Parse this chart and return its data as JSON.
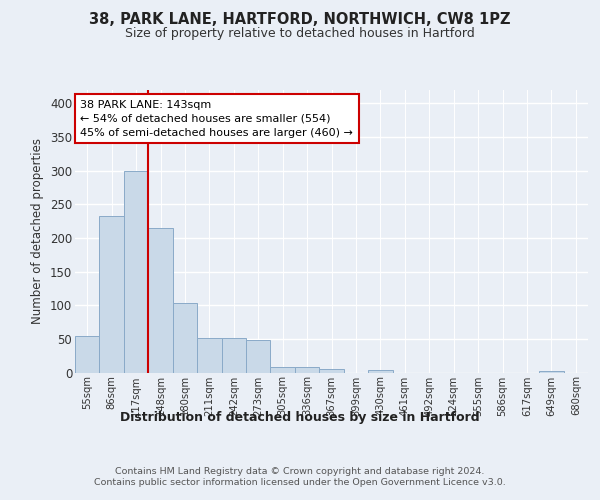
{
  "title1": "38, PARK LANE, HARTFORD, NORTHWICH, CW8 1PZ",
  "title2": "Size of property relative to detached houses in Hartford",
  "xlabel": "Distribution of detached houses by size in Hartford",
  "ylabel": "Number of detached properties",
  "footer": "Contains HM Land Registry data © Crown copyright and database right 2024.\nContains public sector information licensed under the Open Government Licence v3.0.",
  "bin_labels": [
    "55sqm",
    "86sqm",
    "117sqm",
    "148sqm",
    "180sqm",
    "211sqm",
    "242sqm",
    "273sqm",
    "305sqm",
    "336sqm",
    "367sqm",
    "399sqm",
    "430sqm",
    "461sqm",
    "492sqm",
    "524sqm",
    "555sqm",
    "586sqm",
    "617sqm",
    "649sqm",
    "680sqm"
  ],
  "bar_heights": [
    54,
    233,
    300,
    215,
    103,
    52,
    51,
    48,
    8,
    8,
    5,
    0,
    4,
    0,
    0,
    0,
    0,
    0,
    0,
    2,
    0
  ],
  "bar_color": "#c9d9e8",
  "bar_edge_color": "#8aaac8",
  "property_line_label": "38 PARK LANE: 143sqm",
  "annotation_line1": "← 54% of detached houses are smaller (554)",
  "annotation_line2": "45% of semi-detached houses are larger (460) →",
  "annotation_box_color": "#ffffff",
  "annotation_box_edge": "#cc0000",
  "vline_color": "#cc0000",
  "vline_x": 2.5,
  "ylim": [
    0,
    420
  ],
  "yticks": [
    0,
    50,
    100,
    150,
    200,
    250,
    300,
    350,
    400
  ],
  "bg_color": "#eaeff6",
  "plot_bg_color": "#eaeff6",
  "grid_color": "#ffffff"
}
